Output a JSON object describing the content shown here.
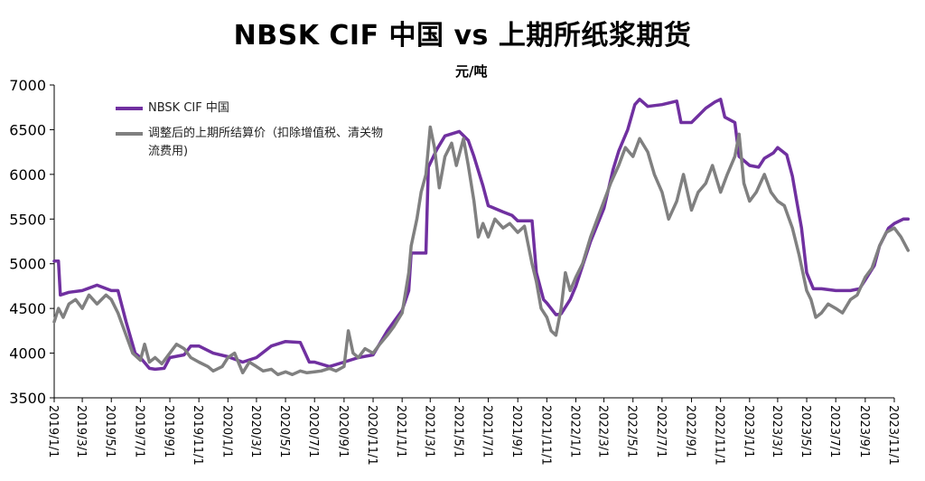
{
  "chart_data": {
    "type": "line",
    "title": "NBSK CIF 中国 vs 上期所纸浆期货",
    "ylabel": "元/吨",
    "ylim": [
      3500,
      7000
    ],
    "yticks": [
      "3500",
      "4000",
      "4500",
      "5000",
      "5500",
      "6000",
      "6500",
      "7000"
    ],
    "x_tick_labels": [
      "2019/1/1",
      "2019/3/1",
      "2019/5/1",
      "2019/7/1",
      "2019/9/1",
      "2019/11/1",
      "2020/1/1",
      "2020/3/1",
      "2020/5/1",
      "2020/7/1",
      "2020/9/1",
      "2020/11/1",
      "2021/1/1",
      "2021/3/1",
      "2021/5/1",
      "2021/7/1",
      "2021/9/1",
      "2021/11/1",
      "2022/1/1",
      "2022/3/1",
      "2022/5/1",
      "2022/7/1",
      "2022/9/1",
      "2022/11/1",
      "2023/1/1",
      "2023/3/1",
      "2023/5/1",
      "2023/7/1",
      "2023/9/1",
      "2023/11/1"
    ],
    "legend_position": "top-left",
    "grid": false,
    "series": [
      {
        "name": "NBSK CIF 中国",
        "color": "#7030A0",
        "points": [
          [
            "2019/1/1",
            5030
          ],
          [
            "2019/1/10",
            5030
          ],
          [
            "2019/1/14",
            4650
          ],
          [
            "2019/2/1",
            4680
          ],
          [
            "2019/3/1",
            4700
          ],
          [
            "2019/4/1",
            4760
          ],
          [
            "2019/5/1",
            4700
          ],
          [
            "2019/5/15",
            4700
          ],
          [
            "2019/6/1",
            4350
          ],
          [
            "2019/6/20",
            4000
          ],
          [
            "2019/7/1",
            3950
          ],
          [
            "2019/7/20",
            3830
          ],
          [
            "2019/8/1",
            3820
          ],
          [
            "2019/8/20",
            3830
          ],
          [
            "2019/9/1",
            3950
          ],
          [
            "2019/10/1",
            3980
          ],
          [
            "2019/10/15",
            4080
          ],
          [
            "2019/11/1",
            4080
          ],
          [
            "2019/12/1",
            4000
          ],
          [
            "2020/1/1",
            3960
          ],
          [
            "2020/2/1",
            3900
          ],
          [
            "2020/3/1",
            3950
          ],
          [
            "2020/4/1",
            4080
          ],
          [
            "2020/5/1",
            4130
          ],
          [
            "2020/6/1",
            4120
          ],
          [
            "2020/6/20",
            3900
          ],
          [
            "2020/7/1",
            3900
          ],
          [
            "2020/8/1",
            3850
          ],
          [
            "2020/9/1",
            3900
          ],
          [
            "2020/10/1",
            3950
          ],
          [
            "2020/11/1",
            3980
          ],
          [
            "2020/12/1",
            4250
          ],
          [
            "2021/1/1",
            4480
          ],
          [
            "2021/1/15",
            4700
          ],
          [
            "2021/1/20",
            5120
          ],
          [
            "2021/2/20",
            5120
          ],
          [
            "2021/2/25",
            6080
          ],
          [
            "2021/3/15",
            6280
          ],
          [
            "2021/4/1",
            6430
          ],
          [
            "2021/5/1",
            6480
          ],
          [
            "2021/5/20",
            6380
          ],
          [
            "2021/6/1",
            6200
          ],
          [
            "2021/6/20",
            5870
          ],
          [
            "2021/7/1",
            5650
          ],
          [
            "2021/8/1",
            5580
          ],
          [
            "2021/8/20",
            5540
          ],
          [
            "2021/9/1",
            5480
          ],
          [
            "2021/10/1",
            5480
          ],
          [
            "2021/10/10",
            4900
          ],
          [
            "2021/10/25",
            4600
          ],
          [
            "2021/11/1",
            4560
          ],
          [
            "2021/11/20",
            4430
          ],
          [
            "2021/12/1",
            4440
          ],
          [
            "2021/12/20",
            4600
          ],
          [
            "2022/1/1",
            4750
          ],
          [
            "2022/2/1",
            5250
          ],
          [
            "2022/3/1",
            5620
          ],
          [
            "2022/3/20",
            6050
          ],
          [
            "2022/4/1",
            6260
          ],
          [
            "2022/4/20",
            6500
          ],
          [
            "2022/5/5",
            6780
          ],
          [
            "2022/5/15",
            6840
          ],
          [
            "2022/6/1",
            6760
          ],
          [
            "2022/7/1",
            6780
          ],
          [
            "2022/8/1",
            6820
          ],
          [
            "2022/8/10",
            6580
          ],
          [
            "2022/9/1",
            6580
          ],
          [
            "2022/10/1",
            6740
          ],
          [
            "2022/10/20",
            6810
          ],
          [
            "2022/11/1",
            6840
          ],
          [
            "2022/11/10",
            6640
          ],
          [
            "2022/12/1",
            6580
          ],
          [
            "2022/12/10",
            6200
          ],
          [
            "2023/1/1",
            6100
          ],
          [
            "2023/1/20",
            6080
          ],
          [
            "2023/2/1",
            6180
          ],
          [
            "2023/2/20",
            6240
          ],
          [
            "2023/3/1",
            6300
          ],
          [
            "2023/3/20",
            6220
          ],
          [
            "2023/4/1",
            5980
          ],
          [
            "2023/4/10",
            5700
          ],
          [
            "2023/4/20",
            5400
          ],
          [
            "2023/5/1",
            4900
          ],
          [
            "2023/5/15",
            4720
          ],
          [
            "2023/6/1",
            4720
          ],
          [
            "2023/7/1",
            4700
          ],
          [
            "2023/8/1",
            4700
          ],
          [
            "2023/8/20",
            4720
          ],
          [
            "2023/9/1",
            4820
          ],
          [
            "2023/9/20",
            4980
          ],
          [
            "2023/10/1",
            5200
          ],
          [
            "2023/10/20",
            5400
          ],
          [
            "2023/11/1",
            5450
          ],
          [
            "2023/11/20",
            5500
          ],
          [
            "2023/11/30",
            5500
          ]
        ]
      },
      {
        "name": "调整后的上期所结算价（扣除增值税、清关物流费用)",
        "color": "#808080",
        "points": [
          [
            "2019/1/1",
            4350
          ],
          [
            "2019/1/10",
            4500
          ],
          [
            "2019/1/20",
            4400
          ],
          [
            "2019/2/1",
            4550
          ],
          [
            "2019/2/15",
            4600
          ],
          [
            "2019/3/1",
            4500
          ],
          [
            "2019/3/15",
            4650
          ],
          [
            "2019/4/1",
            4550
          ],
          [
            "2019/4/20",
            4650
          ],
          [
            "2019/5/1",
            4600
          ],
          [
            "2019/5/15",
            4450
          ],
          [
            "2019/6/1",
            4200
          ],
          [
            "2019/6/15",
            4000
          ],
          [
            "2019/7/1",
            3920
          ],
          [
            "2019/7/10",
            4100
          ],
          [
            "2019/7/20",
            3900
          ],
          [
            "2019/8/1",
            3950
          ],
          [
            "2019/8/15",
            3880
          ],
          [
            "2019/9/1",
            4000
          ],
          [
            "2019/9/15",
            4100
          ],
          [
            "2019/10/1",
            4050
          ],
          [
            "2019/10/15",
            3950
          ],
          [
            "2019/11/1",
            3900
          ],
          [
            "2019/11/20",
            3850
          ],
          [
            "2019/12/1",
            3800
          ],
          [
            "2019/12/20",
            3850
          ],
          [
            "2020/1/1",
            3950
          ],
          [
            "2020/1/15",
            4000
          ],
          [
            "2020/2/1",
            3780
          ],
          [
            "2020/2/15",
            3900
          ],
          [
            "2020/3/1",
            3850
          ],
          [
            "2020/3/15",
            3800
          ],
          [
            "2020/4/1",
            3820
          ],
          [
            "2020/4/15",
            3760
          ],
          [
            "2020/5/1",
            3790
          ],
          [
            "2020/5/15",
            3760
          ],
          [
            "2020/6/1",
            3800
          ],
          [
            "2020/6/15",
            3780
          ],
          [
            "2020/7/1",
            3790
          ],
          [
            "2020/7/15",
            3800
          ],
          [
            "2020/8/1",
            3830
          ],
          [
            "2020/8/15",
            3800
          ],
          [
            "2020/9/1",
            3850
          ],
          [
            "2020/9/10",
            4250
          ],
          [
            "2020/9/20",
            4000
          ],
          [
            "2020/10/1",
            3950
          ],
          [
            "2020/10/15",
            4050
          ],
          [
            "2020/11/1",
            4000
          ],
          [
            "2020/11/15",
            4100
          ],
          [
            "2020/12/1",
            4200
          ],
          [
            "2020/12/15",
            4300
          ],
          [
            "2021/1/1",
            4450
          ],
          [
            "2021/1/15",
            4900
          ],
          [
            "2021/1/20",
            5200
          ],
          [
            "2021/2/1",
            5500
          ],
          [
            "2021/2/10",
            5800
          ],
          [
            "2021/2/20",
            6000
          ],
          [
            "2021/3/1",
            6530
          ],
          [
            "2021/3/10",
            6300
          ],
          [
            "2021/3/20",
            5850
          ],
          [
            "2021/4/1",
            6200
          ],
          [
            "2021/4/15",
            6350
          ],
          [
            "2021/4/25",
            6100
          ],
          [
            "2021/5/10",
            6400
          ],
          [
            "2021/5/20",
            6100
          ],
          [
            "2021/6/1",
            5700
          ],
          [
            "2021/6/10",
            5300
          ],
          [
            "2021/6/20",
            5450
          ],
          [
            "2021/7/1",
            5300
          ],
          [
            "2021/7/15",
            5500
          ],
          [
            "2021/8/1",
            5400
          ],
          [
            "2021/8/15",
            5450
          ],
          [
            "2021/9/1",
            5350
          ],
          [
            "2021/9/15",
            5420
          ],
          [
            "2021/10/1",
            5000
          ],
          [
            "2021/10/10",
            4800
          ],
          [
            "2021/10/20",
            4500
          ],
          [
            "2021/11/1",
            4400
          ],
          [
            "2021/11/10",
            4250
          ],
          [
            "2021/11/20",
            4200
          ],
          [
            "2021/12/1",
            4500
          ],
          [
            "2021/12/10",
            4900
          ],
          [
            "2021/12/20",
            4700
          ],
          [
            "2022/1/1",
            4850
          ],
          [
            "2022/1/15",
            5000
          ],
          [
            "2022/2/1",
            5300
          ],
          [
            "2022/2/15",
            5500
          ],
          [
            "2022/3/1",
            5700
          ],
          [
            "2022/3/15",
            5900
          ],
          [
            "2022/4/1",
            6100
          ],
          [
            "2022/4/15",
            6300
          ],
          [
            "2022/5/1",
            6200
          ],
          [
            "2022/5/15",
            6400
          ],
          [
            "2022/6/1",
            6250
          ],
          [
            "2022/6/15",
            6000
          ],
          [
            "2022/7/1",
            5800
          ],
          [
            "2022/7/15",
            5500
          ],
          [
            "2022/8/1",
            5700
          ],
          [
            "2022/8/15",
            6000
          ],
          [
            "2022/9/1",
            5600
          ],
          [
            "2022/9/15",
            5800
          ],
          [
            "2022/10/1",
            5900
          ],
          [
            "2022/10/15",
            6100
          ],
          [
            "2022/11/1",
            5800
          ],
          [
            "2022/11/15",
            6000
          ],
          [
            "2022/12/1",
            6200
          ],
          [
            "2022/12/10",
            6450
          ],
          [
            "2022/12/20",
            5900
          ],
          [
            "2023/1/1",
            5700
          ],
          [
            "2023/1/15",
            5800
          ],
          [
            "2023/2/1",
            6000
          ],
          [
            "2023/2/15",
            5800
          ],
          [
            "2023/3/1",
            5700
          ],
          [
            "2023/3/15",
            5650
          ],
          [
            "2023/4/1",
            5400
          ],
          [
            "2023/4/15",
            5100
          ],
          [
            "2023/5/1",
            4700
          ],
          [
            "2023/5/10",
            4600
          ],
          [
            "2023/5/20",
            4400
          ],
          [
            "2023/6/1",
            4450
          ],
          [
            "2023/6/15",
            4550
          ],
          [
            "2023/7/1",
            4500
          ],
          [
            "2023/7/15",
            4450
          ],
          [
            "2023/8/1",
            4600
          ],
          [
            "2023/8/15",
            4650
          ],
          [
            "2023/9/1",
            4850
          ],
          [
            "2023/9/15",
            4950
          ],
          [
            "2023/10/1",
            5200
          ],
          [
            "2023/10/15",
            5350
          ],
          [
            "2023/11/1",
            5400
          ],
          [
            "2023/11/15",
            5300
          ],
          [
            "2023/11/30",
            5150
          ]
        ]
      }
    ]
  }
}
